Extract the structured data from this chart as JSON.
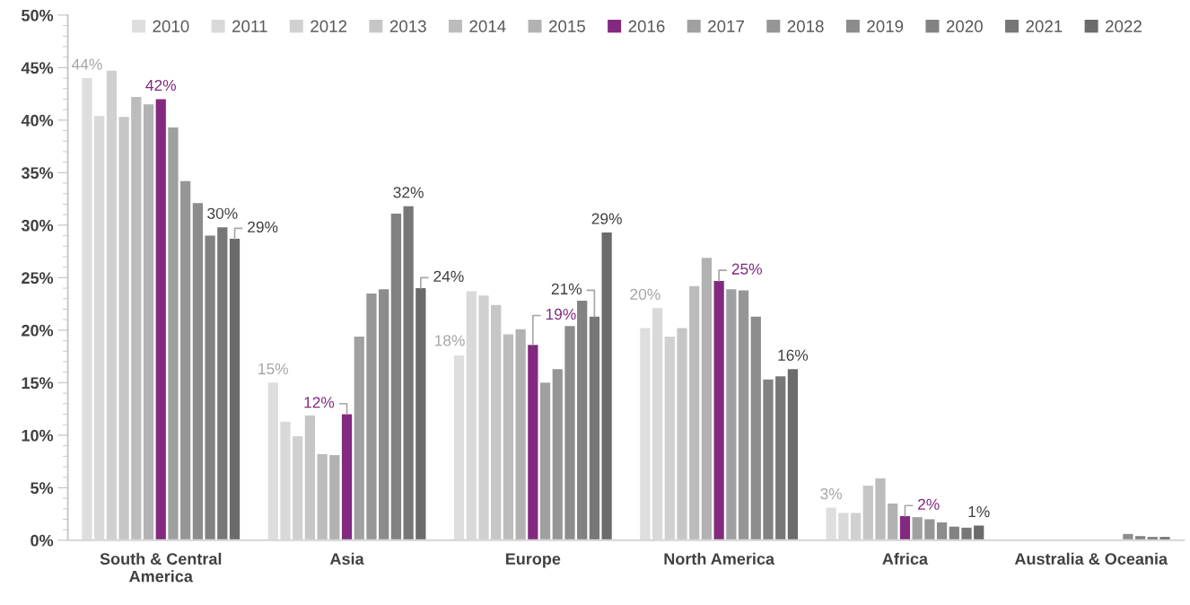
{
  "chart_data": {
    "type": "bar",
    "categories": [
      "South & Central America",
      "Asia",
      "Europe",
      "North America",
      "Africa",
      "Australia & Oceania"
    ],
    "series": [
      {
        "name": "2010",
        "color": "#dedede",
        "values": [
          44.0,
          15.0,
          17.6,
          20.2,
          3.1,
          0
        ],
        "value_labels": [
          "44%",
          "15%",
          "18%",
          "20%",
          "3%",
          null
        ]
      },
      {
        "name": "2011",
        "color": "#d9d9d9",
        "values": [
          40.4,
          11.3,
          23.7,
          22.1,
          2.6,
          0
        ]
      },
      {
        "name": "2012",
        "color": "#d0d0d0",
        "values": [
          44.7,
          9.9,
          23.3,
          19.4,
          2.6,
          0
        ]
      },
      {
        "name": "2013",
        "color": "#c6c6c6",
        "values": [
          40.3,
          11.9,
          22.4,
          20.2,
          5.2,
          0
        ]
      },
      {
        "name": "2014",
        "color": "#bcbcbc",
        "values": [
          42.2,
          8.2,
          19.6,
          24.2,
          5.9,
          0
        ]
      },
      {
        "name": "2015",
        "color": "#b2b2b2",
        "values": [
          41.5,
          8.1,
          20.1,
          26.9,
          3.5,
          0
        ]
      },
      {
        "name": "2016",
        "color": "#832a80",
        "values": [
          42.0,
          12.0,
          18.6,
          24.7,
          2.3,
          0
        ],
        "value_labels": [
          "42%",
          "12%",
          "19%",
          "25%",
          "2%",
          null
        ]
      },
      {
        "name": "2017",
        "color": "#a0a0a0",
        "values": [
          39.3,
          19.4,
          15.0,
          23.9,
          2.2,
          0
        ]
      },
      {
        "name": "2018",
        "color": "#969696",
        "values": [
          34.2,
          23.5,
          16.3,
          23.8,
          2.0,
          0
        ]
      },
      {
        "name": "2019",
        "color": "#8c8c8c",
        "values": [
          32.1,
          23.9,
          20.4,
          21.3,
          1.7,
          0.6
        ]
      },
      {
        "name": "2020",
        "color": "#828282",
        "values": [
          29.0,
          31.1,
          22.8,
          15.3,
          1.3,
          0.4
        ]
      },
      {
        "name": "2021",
        "color": "#777777",
        "values": [
          29.8,
          31.8,
          21.3,
          15.6,
          1.2,
          0.3
        ],
        "value_labels": [
          "30%",
          "32%",
          "21%",
          null,
          null,
          null
        ]
      },
      {
        "name": "2022",
        "color": "#6b6b6b",
        "values": [
          28.7,
          24.0,
          29.3,
          16.3,
          1.4,
          0.3
        ],
        "value_labels": [
          "29%",
          "24%",
          "29%",
          "16%",
          "1%",
          null
        ]
      }
    ],
    "ylim": [
      0,
      50
    ],
    "yticks": [
      {
        "value": 0,
        "label": "0%"
      },
      {
        "value": 5,
        "label": "5%"
      },
      {
        "value": 10,
        "label": "10%"
      },
      {
        "value": 15,
        "label": "15%"
      },
      {
        "value": 20,
        "label": "20%"
      },
      {
        "value": 25,
        "label": "25%"
      },
      {
        "value": 30,
        "label": "30%"
      },
      {
        "value": 35,
        "label": "35%"
      },
      {
        "value": 40,
        "label": "40%"
      },
      {
        "value": 45,
        "label": "45%"
      },
      {
        "value": 50,
        "label": "50%"
      }
    ],
    "grid": false,
    "legend": "top"
  }
}
